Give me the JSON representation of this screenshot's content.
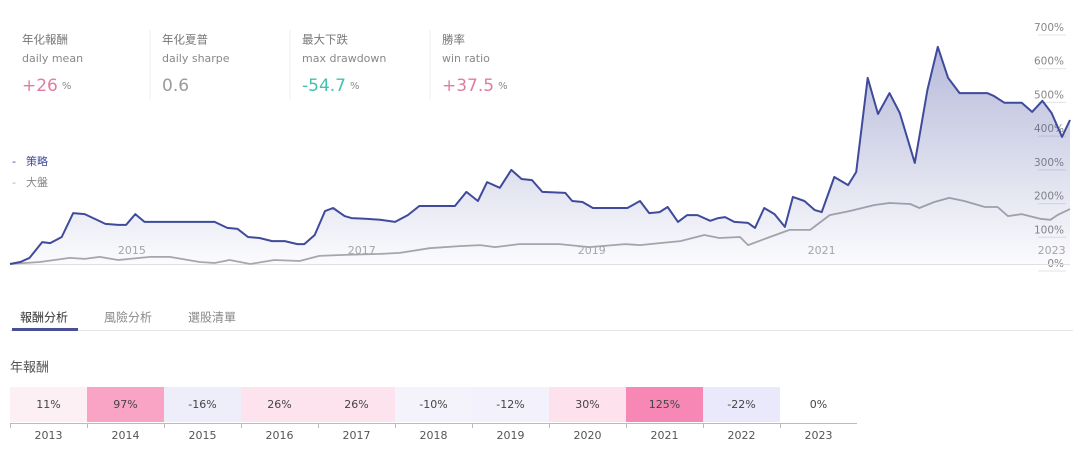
{
  "stats": [
    {
      "label": "年化報酬",
      "sublabel": "daily mean",
      "value": "+26",
      "unit": "%",
      "color": "#e27ba3"
    },
    {
      "label": "年化夏普",
      "sublabel": "daily sharpe",
      "value": "0.6",
      "color": "#9a9a9a"
    },
    {
      "label": "最大下跌",
      "sublabel": "max drawdown",
      "value": "-54.7",
      "unit": "%",
      "color": "#45bfae"
    },
    {
      "label": "勝率",
      "sublabel": "win ratio",
      "value": "+37.5",
      "unit": "%",
      "color": "#e27ba3"
    }
  ],
  "chart_data": {
    "type": "line",
    "series": [
      {
        "name": "策略",
        "color": "#3f4a9c",
        "x": [
          2013.94,
          2014.03,
          2014.11,
          2014.22,
          2014.29,
          2014.39,
          2014.49,
          2014.59,
          2014.77,
          2014.88,
          2014.95,
          2015.03,
          2015.11,
          2015.72,
          2015.83,
          2015.92,
          2016.01,
          2016.11,
          2016.22,
          2016.33,
          2016.44,
          2016.5,
          2016.59,
          2016.68,
          2016.75,
          2016.85,
          2016.91,
          2017.03,
          2017.16,
          2017.29,
          2017.4,
          2017.5,
          2017.81,
          2017.91,
          2018.01,
          2018.09,
          2018.2,
          2018.3,
          2018.39,
          2018.48,
          2018.57,
          2018.77,
          2018.83,
          2018.92,
          2019.01,
          2019.31,
          2019.42,
          2019.5,
          2019.59,
          2019.66,
          2019.75,
          2019.83,
          2019.92,
          2020.03,
          2020.1,
          2020.16,
          2020.24,
          2020.36,
          2020.42,
          2020.5,
          2020.59,
          2020.68,
          2020.75,
          2020.85,
          2020.94,
          2021.0,
          2021.11,
          2021.23,
          2021.3,
          2021.4,
          2021.49,
          2021.59,
          2021.68,
          2021.81,
          2021.92,
          2022.01,
          2022.1,
          2022.2,
          2022.44,
          2022.5,
          2022.59,
          2022.74,
          2022.83,
          2022.92,
          2023.0,
          2023.09,
          2023.16
        ],
        "values": [
          0,
          6,
          18,
          65,
          62,
          80,
          151,
          148,
          119,
          116,
          116,
          148,
          125,
          125,
          107,
          104,
          80,
          77,
          68,
          68,
          59,
          59,
          86,
          157,
          166,
          142,
          136,
          134,
          131,
          125,
          145,
          172,
          172,
          214,
          187,
          243,
          226,
          279,
          252,
          249,
          214,
          211,
          187,
          184,
          166,
          166,
          187,
          151,
          154,
          169,
          125,
          145,
          145,
          128,
          136,
          139,
          125,
          122,
          107,
          166,
          148,
          110,
          199,
          187,
          160,
          154,
          258,
          234,
          273,
          552,
          445,
          507,
          448,
          300,
          516,
          644,
          552,
          507,
          507,
          498,
          478,
          478,
          451,
          484,
          448,
          377,
          427
        ]
      },
      {
        "name": "大盤",
        "color": "#a9a9ad",
        "x": [
          2013.94,
          2014.2,
          2014.46,
          2014.59,
          2014.72,
          2014.88,
          2015.16,
          2015.33,
          2015.59,
          2015.72,
          2015.85,
          2016.03,
          2016.24,
          2016.46,
          2016.63,
          2016.85,
          2017.16,
          2017.33,
          2017.59,
          2017.85,
          2018.03,
          2018.16,
          2018.37,
          2018.72,
          2018.98,
          2019.29,
          2019.42,
          2019.59,
          2019.77,
          2019.98,
          2020.11,
          2020.29,
          2020.36,
          2020.55,
          2020.72,
          2020.9,
          2021.07,
          2021.24,
          2021.46,
          2021.59,
          2021.77,
          2021.85,
          2021.98,
          2022.11,
          2022.24,
          2022.42,
          2022.53,
          2022.62,
          2022.74,
          2022.9,
          2022.99,
          2023.05,
          2023.16
        ],
        "values": [
          0,
          6,
          18,
          15,
          21,
          12,
          21,
          21,
          6,
          3,
          12,
          0,
          12,
          9,
          24,
          27,
          30,
          33,
          47,
          53,
          56,
          50,
          59,
          59,
          50,
          59,
          56,
          62,
          68,
          86,
          77,
          80,
          56,
          80,
          101,
          101,
          145,
          157,
          175,
          181,
          178,
          166,
          184,
          196,
          187,
          169,
          169,
          142,
          148,
          134,
          131,
          145,
          163
        ]
      }
    ],
    "xlim": [
      2013.94,
      2023.16
    ],
    "xticks": [
      2015,
      2017,
      2019,
      2021,
      2023
    ],
    "ylim": [
      0,
      700
    ],
    "yticks": [
      {
        "value": 0,
        "label": "0%"
      },
      {
        "value": 100,
        "label": "100%"
      },
      {
        "value": 200,
        "label": "200%"
      },
      {
        "value": 300,
        "label": "300%"
      },
      {
        "value": 400,
        "label": "400%"
      },
      {
        "value": 500,
        "label": "500%"
      },
      {
        "value": 600,
        "label": "600%"
      },
      {
        "value": 700,
        "label": "700%"
      }
    ]
  },
  "tabs": [
    "報酬分析",
    "風險分析",
    "選股清單"
  ],
  "annual_returns": {
    "title": "年報酬",
    "years": [
      "2013",
      "2014",
      "2015",
      "2016",
      "2017",
      "2018",
      "2019",
      "2020",
      "2021",
      "2022",
      "2023"
    ],
    "values": [
      "11%",
      "97%",
      "-16%",
      "26%",
      "26%",
      "-10%",
      "-12%",
      "30%",
      "125%",
      "-22%",
      "0%"
    ],
    "colors": [
      "#fdf0f5",
      "#f9a3c5",
      "#eeeefb",
      "#fde3ee",
      "#fde3ee",
      "#f4f3fc",
      "#f2f1fc",
      "#fde1ed",
      "#f788b6",
      "#e9e9fb",
      "#ffffff"
    ]
  }
}
